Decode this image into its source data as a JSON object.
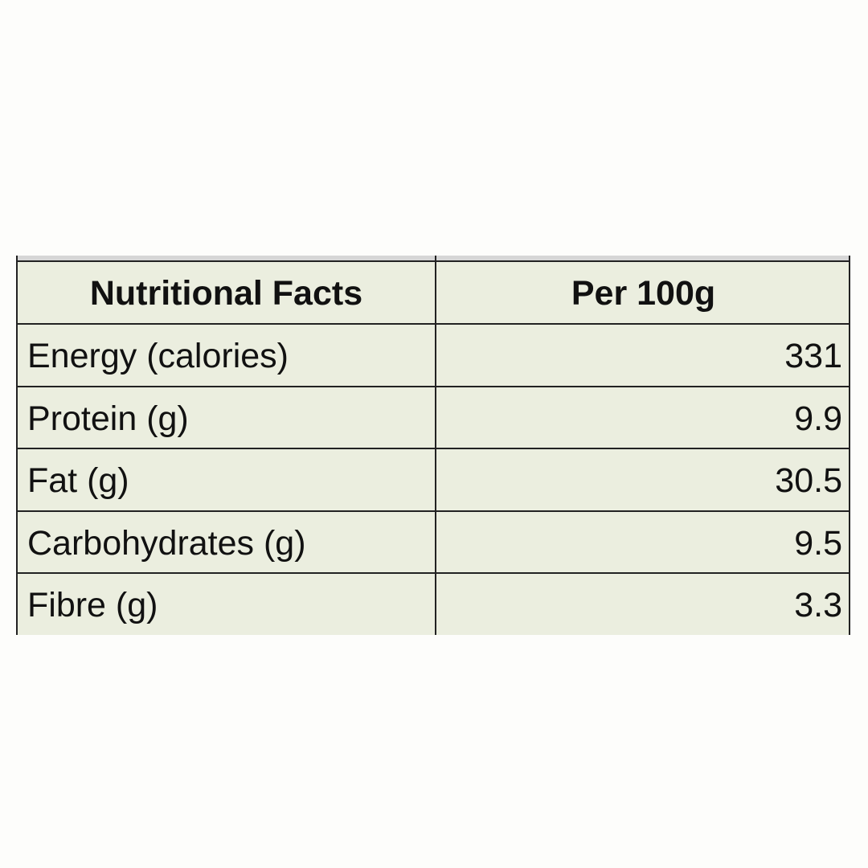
{
  "table": {
    "header": [
      "Nutritional Facts",
      "Per 100g"
    ],
    "rows": [
      [
        "Energy (calories)",
        331
      ],
      [
        "Protein (g)",
        9.9
      ],
      [
        "Fat (g)",
        30.5
      ],
      [
        "Carbohydrates (g)",
        9.5
      ],
      [
        "Fibre (g)",
        3.3
      ]
    ]
  }
}
